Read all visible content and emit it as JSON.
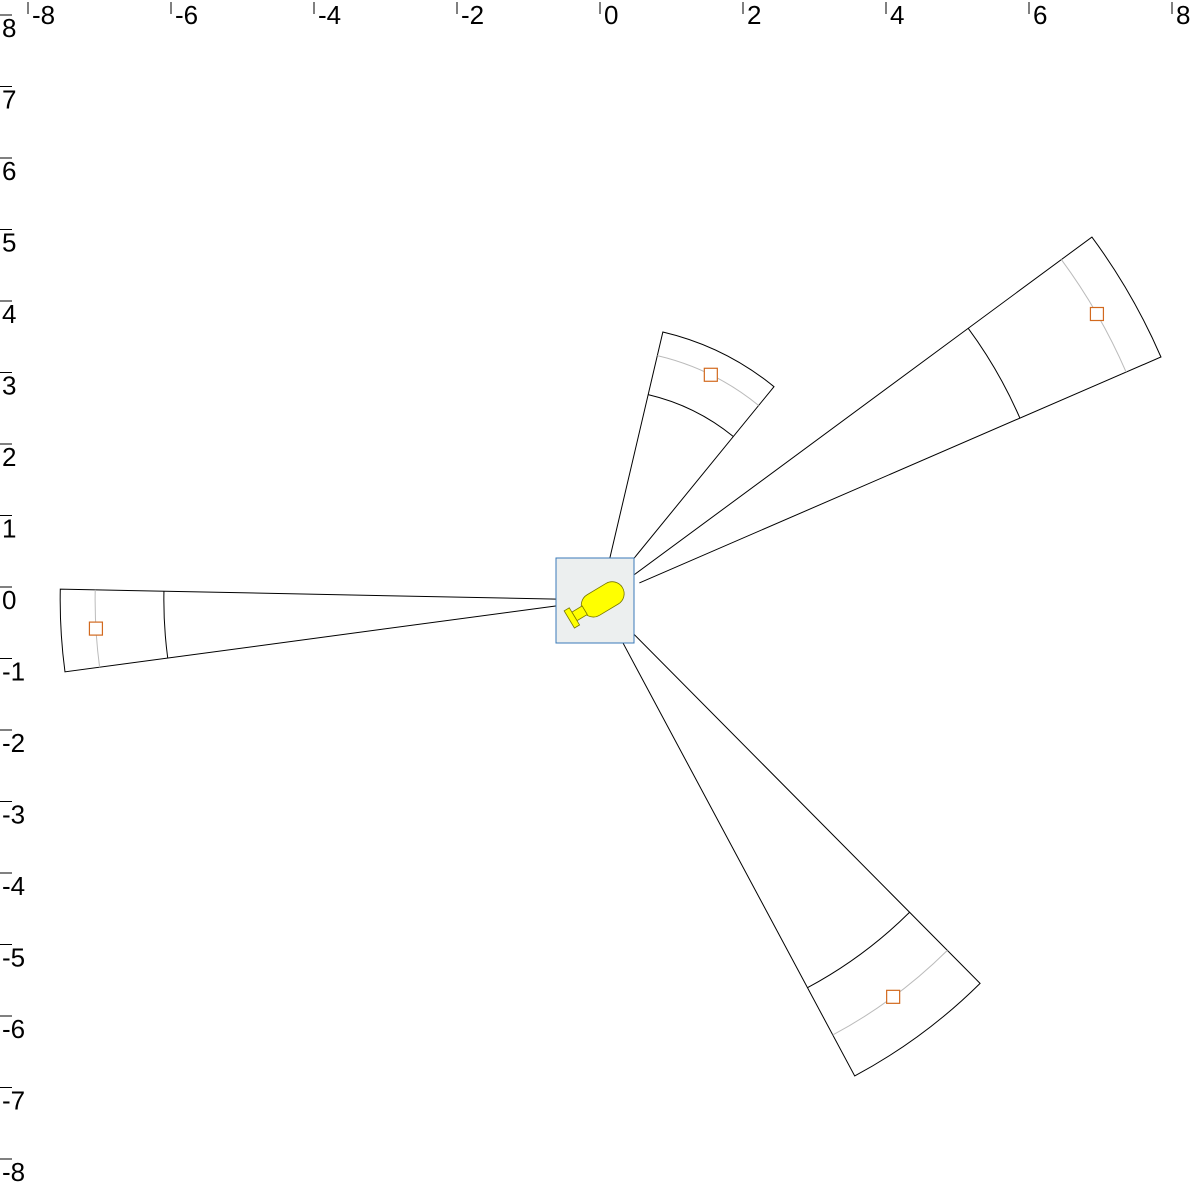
{
  "x_axis": {
    "ticks": [
      "-8",
      "-6",
      "-4",
      "-2",
      "0",
      "2",
      "4",
      "6",
      "8"
    ]
  },
  "y_axis": {
    "ticks": [
      "8",
      "7",
      "6",
      "5",
      "4",
      "3",
      "2",
      "1",
      "0",
      "-1",
      "-2",
      "-3",
      "-4",
      "-5",
      "-6",
      "-7",
      "-8"
    ]
  },
  "colors": {
    "sector_stroke": "#000000",
    "guide_stroke": "#bbbbbb",
    "target_marker": "#d2691e",
    "sensor_box_fill": "#ecefef",
    "sensor_box_stroke": "#3a7ab8",
    "sensor_body_fill": "#ffff00"
  },
  "icons": {
    "center": "bottle-sensor-icon",
    "target": "square-marker-icon"
  },
  "sectors": [
    {
      "id": "north",
      "target": [
        1.55,
        3.15
      ],
      "half_angle_deg": 13,
      "inner_radius": 2.95,
      "outer_radius": 3.85
    },
    {
      "id": "northeast",
      "target": [
        6.95,
        4.0
      ],
      "half_angle_deg": 6.5,
      "inner_radius": 6.4,
      "outer_radius": 8.55
    },
    {
      "id": "west",
      "target": [
        -7.05,
        -0.4
      ],
      "half_angle_deg": 4.4,
      "inner_radius": 6.1,
      "outer_radius": 7.55
    },
    {
      "id": "southeast",
      "target": [
        4.1,
        -5.55
      ],
      "half_angle_deg": 8.3,
      "inner_radius": 6.15,
      "outer_radius": 7.55
    }
  ]
}
